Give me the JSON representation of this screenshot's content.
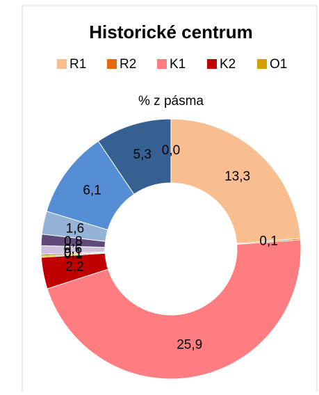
{
  "chart_data": {
    "type": "donut",
    "title": "Historické centrum",
    "subtitle": "% z pásma",
    "categories": [
      "R1",
      "R2",
      "K1",
      "K2",
      "O1",
      null,
      null,
      null,
      null,
      null,
      null,
      null
    ],
    "values": [
      13.3,
      0.1,
      25.9,
      2.2,
      0.1,
      0.1,
      0.6,
      0.8,
      1.6,
      6.1,
      5.3,
      0.0
    ],
    "value_labels": [
      "13,3",
      "0,1",
      "25,9",
      "2,2",
      "0,1",
      "0,1",
      "0,6",
      "0,8",
      "1,6",
      "6,1",
      "5,3",
      "0,0"
    ],
    "colors": [
      "#f9be8f",
      "#e46c0a",
      "#ff7c80",
      "#c00000",
      "#d4a000",
      "#7f6000",
      "#ccc0da",
      "#604a7b",
      "#95b3d7",
      "#558ed5",
      "#376092",
      "#1f3864"
    ]
  }
}
